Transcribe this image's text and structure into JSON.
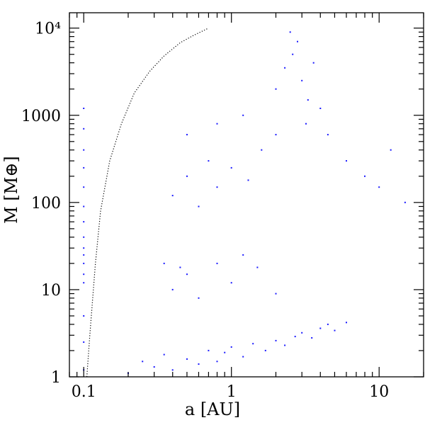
{
  "chart_data": {
    "type": "scatter",
    "title": "",
    "xlabel": "a [AU]",
    "ylabel": "M [M⊕]",
    "xscale": "log",
    "yscale": "log",
    "xlim": [
      0.08,
      20
    ],
    "ylim": [
      1,
      15000
    ],
    "x_ticks": [
      {
        "value": 0.1,
        "label": "0.1"
      },
      {
        "value": 1,
        "label": "1"
      },
      {
        "value": 10,
        "label": "10"
      }
    ],
    "y_ticks": [
      {
        "value": 1,
        "label": "1"
      },
      {
        "value": 10,
        "label": "10"
      },
      {
        "value": 100,
        "label": "100"
      },
      {
        "value": 1000,
        "label": "1000"
      },
      {
        "value": 10000,
        "label": "10⁴"
      }
    ],
    "grid": false,
    "legend": "none",
    "colors": {
      "points": "#1a1aff",
      "boundary_curve": "#000000"
    },
    "boundary_curve": {
      "style": "dotted",
      "x": [
        0.105,
        0.11,
        0.12,
        0.13,
        0.15,
        0.18,
        0.22,
        0.28,
        0.35,
        0.45,
        0.55,
        0.7
      ],
      "y": [
        1,
        3,
        20,
        80,
        300,
        800,
        1800,
        3200,
        4800,
        6800,
        8200,
        10000
      ]
    },
    "series": [
      {
        "points": [
          [
            0.1,
            1.2
          ],
          [
            0.1,
            2.5
          ],
          [
            0.1,
            5
          ],
          [
            0.1,
            12
          ],
          [
            0.1,
            15
          ],
          [
            0.1,
            20
          ],
          [
            0.1,
            25
          ],
          [
            0.1,
            30
          ],
          [
            0.1,
            40
          ],
          [
            0.1,
            60
          ],
          [
            0.1,
            90
          ],
          [
            0.1,
            150
          ],
          [
            0.1,
            250
          ],
          [
            0.1,
            400
          ],
          [
            0.1,
            700
          ],
          [
            0.1,
            1200
          ],
          [
            0.2,
            1.1
          ],
          [
            0.25,
            1.5
          ],
          [
            0.3,
            1.3
          ],
          [
            0.35,
            1.8
          ],
          [
            0.4,
            1.2
          ],
          [
            0.5,
            1.6
          ],
          [
            0.6,
            1.4
          ],
          [
            0.7,
            2.0
          ],
          [
            0.8,
            1.5
          ],
          [
            0.9,
            1.9
          ],
          [
            1.0,
            2.2
          ],
          [
            1.2,
            1.7
          ],
          [
            1.4,
            2.4
          ],
          [
            1.7,
            2.0
          ],
          [
            2.0,
            2.6
          ],
          [
            2.3,
            2.3
          ],
          [
            2.7,
            2.9
          ],
          [
            3.0,
            3.2
          ],
          [
            3.5,
            2.8
          ],
          [
            4.0,
            3.6
          ],
          [
            4.5,
            4.0
          ],
          [
            5.0,
            3.4
          ],
          [
            6.0,
            4.2
          ],
          [
            0.4,
            10
          ],
          [
            0.5,
            15
          ],
          [
            0.6,
            8
          ],
          [
            0.8,
            20
          ],
          [
            1.0,
            12
          ],
          [
            1.2,
            25
          ],
          [
            1.5,
            18
          ],
          [
            2.0,
            9
          ],
          [
            0.35,
            20
          ],
          [
            0.45,
            18
          ],
          [
            0.4,
            120
          ],
          [
            0.5,
            200
          ],
          [
            0.6,
            90
          ],
          [
            0.7,
            300
          ],
          [
            0.8,
            150
          ],
          [
            1.0,
            250
          ],
          [
            1.3,
            180
          ],
          [
            1.6,
            400
          ],
          [
            2.0,
            600
          ],
          [
            0.5,
            600
          ],
          [
            0.8,
            800
          ],
          [
            1.2,
            1000
          ],
          [
            2.0,
            2000
          ],
          [
            2.3,
            3500
          ],
          [
            2.6,
            5000
          ],
          [
            2.8,
            7000
          ],
          [
            3.0,
            2500
          ],
          [
            3.3,
            1500
          ],
          [
            3.6,
            4000
          ],
          [
            4.0,
            1200
          ],
          [
            2.5,
            9000
          ],
          [
            3.2,
            800
          ],
          [
            4.5,
            600
          ],
          [
            6.0,
            300
          ],
          [
            8.0,
            200
          ],
          [
            10.0,
            150
          ],
          [
            12.0,
            400
          ],
          [
            15.0,
            100
          ]
        ]
      }
    ]
  }
}
